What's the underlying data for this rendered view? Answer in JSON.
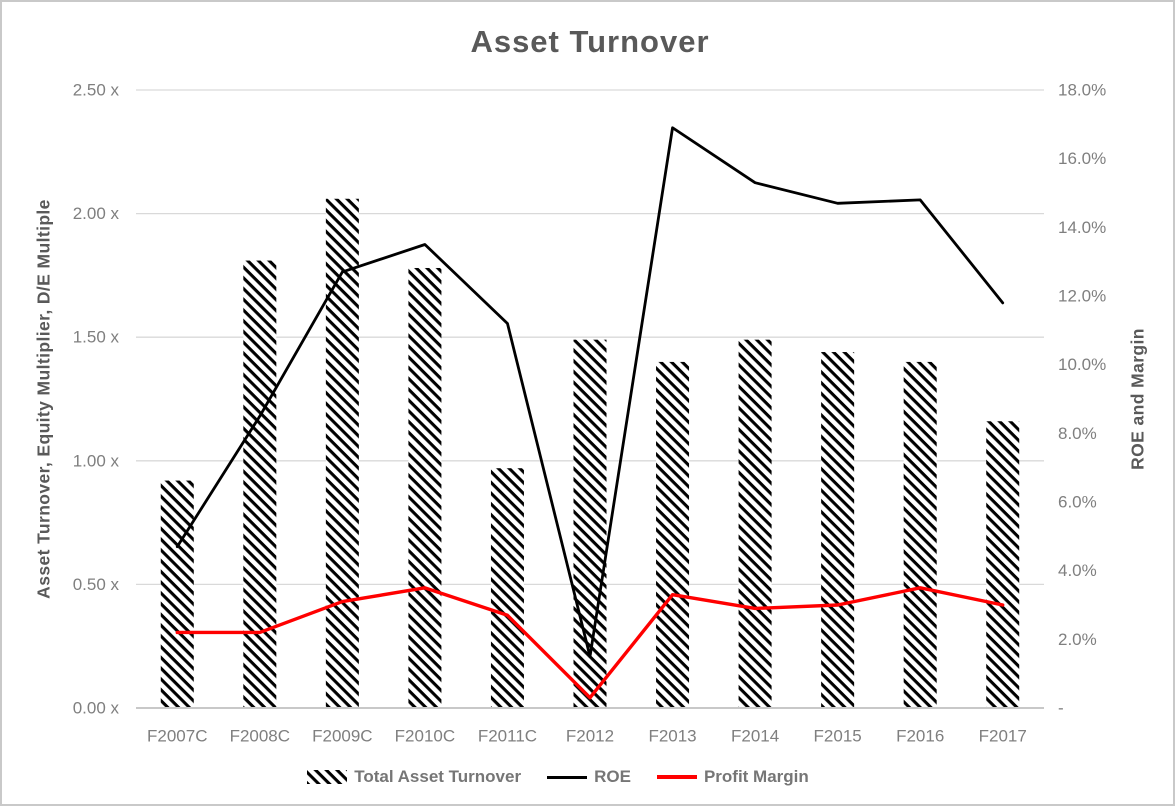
{
  "title": "Asset Turnover",
  "chart_data": {
    "type": "combo",
    "title": "Asset Turnover",
    "categories": [
      "F2007C",
      "F2008C",
      "F2009C",
      "F2010C",
      "F2011C",
      "F2012",
      "F2013",
      "F2014",
      "F2015",
      "F2016",
      "F2017"
    ],
    "series": [
      {
        "name": "Total Asset Turnover",
        "type": "bar",
        "axis": "left",
        "style": "black-diagonal-hatch",
        "values": [
          0.92,
          1.81,
          2.06,
          1.78,
          0.97,
          1.49,
          1.4,
          1.49,
          1.44,
          1.4,
          1.16
        ]
      },
      {
        "name": "ROE",
        "type": "line",
        "axis": "right",
        "color": "#000000",
        "values": [
          4.7,
          8.5,
          12.7,
          13.5,
          11.2,
          1.5,
          16.9,
          15.3,
          14.7,
          14.8,
          11.8
        ]
      },
      {
        "name": "Profit Margin",
        "type": "line",
        "axis": "right",
        "color": "#FF0000",
        "values": [
          2.2,
          2.2,
          3.1,
          3.5,
          2.7,
          0.3,
          3.3,
          2.9,
          3.0,
          3.5,
          3.0
        ]
      }
    ],
    "left_axis": {
      "title": "Asset Turnover, Equity Multiplier, D/E Multiple",
      "range": [
        0,
        2.5
      ],
      "tick_values": [
        2.5,
        2.0,
        1.5,
        1.0,
        0.5,
        0.0
      ],
      "tick_labels": [
        "2.50 x",
        "2.00 x",
        "1.50 x",
        "1.00 x",
        "0.50 x",
        "0.00 x"
      ]
    },
    "right_axis": {
      "title": "ROE and Margin",
      "range": [
        0,
        18
      ],
      "unit": "%",
      "tick_values": [
        18,
        16,
        14,
        12,
        10,
        8,
        6,
        4,
        2,
        0
      ],
      "tick_labels": [
        "18.0%",
        "16.0%",
        "14.0%",
        "12.0%",
        "10.0%",
        "8.0%",
        "6.0%",
        "4.0%",
        "2.0%",
        "-"
      ]
    },
    "grid": true,
    "legend_position": "bottom",
    "colors": {
      "title_text": "#595959",
      "tick_text": "#7F7F7F",
      "legend_text": "#767676",
      "gridline": "#D9D9D9",
      "axis_line": "#C8C8C8",
      "roe_line": "#000000",
      "profit_margin_line": "#FF0000",
      "bar_hatch": "#000000",
      "border": "#C9C9C9"
    }
  }
}
